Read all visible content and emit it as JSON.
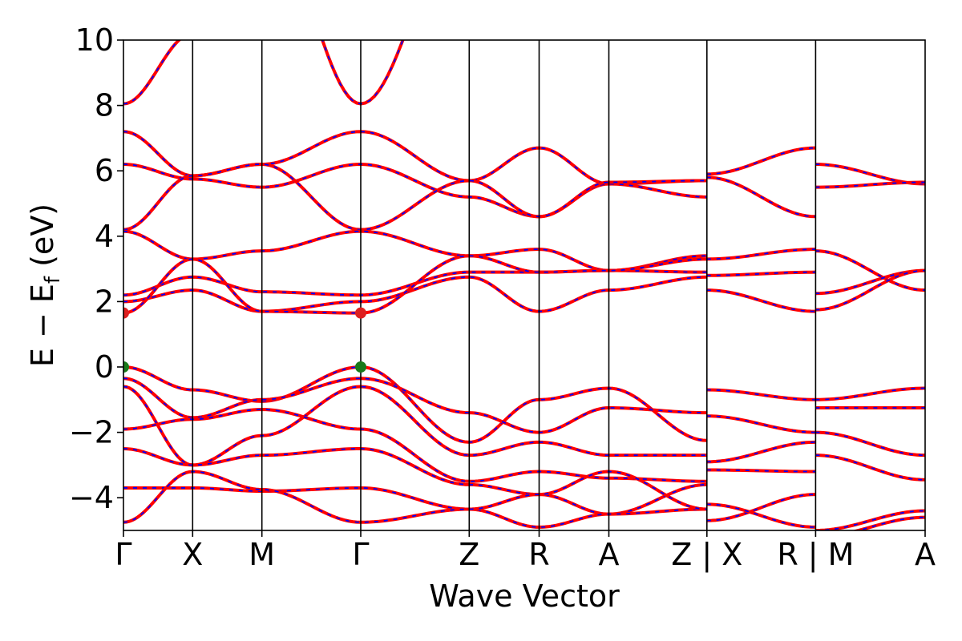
{
  "chart_data": {
    "type": "line",
    "title": "",
    "xlabel": "Wave Vector",
    "ylabel_main": "E − E",
    "ylabel_sub": "f",
    "ylabel_unit": " (eV)",
    "ylim": [
      -5,
      10
    ],
    "yticks": [
      10,
      8,
      6,
      4,
      2,
      0,
      -2,
      -4
    ],
    "ytick_labels": [
      "10",
      "8",
      "6",
      "4",
      "2",
      "0",
      "−2",
      "−4"
    ],
    "k_positions": [
      0,
      0.0863,
      0.1727,
      0.296,
      0.4313,
      0.5185,
      0.6055,
      0.7278,
      0.8634,
      1.0
    ],
    "k_labels": [
      "Γ",
      "X",
      "M",
      "Γ",
      "Z",
      "R",
      "A",
      "Z | X",
      "R | M",
      "A"
    ],
    "discontinuities": [
      0.7278,
      0.8634
    ],
    "series_colors": {
      "bands_main": "#ff0000",
      "bands_overlay": "#0000ff",
      "cbm_marker": "#dd2020",
      "vbm_marker": "#1a7a1a"
    },
    "markers": [
      {
        "kind": "CBM",
        "x": 0.0,
        "y": 1.65
      },
      {
        "kind": "CBM",
        "x": 0.296,
        "y": 1.65
      },
      {
        "kind": "VBM",
        "x": 0.0,
        "y": 0.0
      },
      {
        "kind": "VBM",
        "x": 0.296,
        "y": 0.0
      }
    ],
    "bands": [
      [
        [
          0,
          8.05
        ],
        [
          0.0863,
          10.2
        ],
        [
          0.1727,
          14
        ],
        [
          0.296,
          8.05
        ],
        [
          0.4313,
          14
        ],
        [
          0.5185,
          14
        ],
        [
          0.6055,
          14
        ],
        [
          0.7278,
          14
        ],
        [
          0.8634,
          14
        ],
        [
          1.0,
          14
        ]
      ],
      [
        [
          0,
          7.2
        ],
        [
          0.0863,
          5.85
        ],
        [
          0.1727,
          6.2
        ],
        [
          0.296,
          7.2
        ],
        [
          0.4313,
          5.7
        ],
        [
          0.5185,
          6.7
        ],
        [
          0.6055,
          5.6
        ],
        [
          0.7278,
          5.7
        ]
      ],
      [
        [
          0,
          6.2
        ],
        [
          0.0863,
          5.75
        ],
        [
          0.1727,
          5.5
        ],
        [
          0.296,
          6.2
        ],
        [
          0.4313,
          5.2
        ],
        [
          0.5185,
          4.6
        ],
        [
          0.6055,
          5.6
        ],
        [
          0.7278,
          5.2
        ]
      ],
      [
        [
          0,
          4.2
        ],
        [
          0.0863,
          5.85
        ],
        [
          0.1727,
          6.2
        ],
        [
          0.296,
          4.2
        ],
        [
          0.4313,
          5.7
        ],
        [
          0.5185,
          4.6
        ],
        [
          0.6055,
          5.65
        ],
        [
          0.7278,
          5.7
        ]
      ],
      [
        [
          0,
          4.15
        ],
        [
          0.0863,
          3.3
        ],
        [
          0.1727,
          3.55
        ],
        [
          0.296,
          4.15
        ],
        [
          0.4313,
          3.4
        ],
        [
          0.5185,
          3.6
        ],
        [
          0.6055,
          2.95
        ],
        [
          0.7278,
          3.4
        ]
      ],
      [
        [
          0,
          2.2
        ],
        [
          0.0863,
          2.75
        ],
        [
          0.1727,
          2.3
        ],
        [
          0.296,
          2.2
        ],
        [
          0.4313,
          2.9
        ],
        [
          0.5185,
          2.9
        ],
        [
          0.6055,
          2.95
        ],
        [
          0.7278,
          2.9
        ]
      ],
      [
        [
          0,
          2.0
        ],
        [
          0.0863,
          2.35
        ],
        [
          0.1727,
          1.7
        ],
        [
          0.296,
          2.0
        ],
        [
          0.4313,
          2.75
        ],
        [
          0.5185,
          1.7
        ],
        [
          0.6055,
          2.35
        ],
        [
          0.7278,
          2.75
        ]
      ],
      [
        [
          0,
          1.65
        ],
        [
          0.0863,
          3.3
        ],
        [
          0.1727,
          1.7
        ],
        [
          0.296,
          1.65
        ],
        [
          0.4313,
          3.4
        ],
        [
          0.5185,
          2.9
        ],
        [
          0.6055,
          2.95
        ],
        [
          0.7278,
          3.3
        ]
      ],
      [
        [
          0,
          0.0
        ],
        [
          0.0863,
          -0.7
        ],
        [
          0.1727,
          -1.05
        ],
        [
          0.296,
          0.0
        ],
        [
          0.4313,
          -2.3
        ],
        [
          0.5185,
          -1.0
        ],
        [
          0.6055,
          -0.65
        ],
        [
          0.7278,
          -2.25
        ]
      ],
      [
        [
          0,
          -0.35
        ],
        [
          0.0863,
          -1.55
        ],
        [
          0.1727,
          -1.0
        ],
        [
          0.296,
          -0.35
        ],
        [
          0.4313,
          -1.4
        ],
        [
          0.5185,
          -2.0
        ],
        [
          0.6055,
          -1.25
        ],
        [
          0.7278,
          -1.4
        ]
      ],
      [
        [
          0,
          -0.6
        ],
        [
          0.0863,
          -3.0
        ],
        [
          0.1727,
          -2.1
        ],
        [
          0.296,
          -0.6
        ],
        [
          0.4313,
          -2.7
        ],
        [
          0.5185,
          -2.3
        ],
        [
          0.6055,
          -2.7
        ],
        [
          0.7278,
          -2.7
        ]
      ],
      [
        [
          0,
          -1.9
        ],
        [
          0.0863,
          -1.6
        ],
        [
          0.1727,
          -1.3
        ],
        [
          0.296,
          -1.9
        ],
        [
          0.4313,
          -3.5
        ],
        [
          0.5185,
          -3.2
        ],
        [
          0.6055,
          -3.4
        ],
        [
          0.7278,
          -3.5
        ]
      ],
      [
        [
          0,
          -2.5
        ],
        [
          0.0863,
          -3.0
        ],
        [
          0.1727,
          -2.7
        ],
        [
          0.296,
          -2.5
        ],
        [
          0.4313,
          -3.6
        ],
        [
          0.5185,
          -3.9
        ],
        [
          0.6055,
          -4.5
        ],
        [
          0.7278,
          -3.6
        ]
      ],
      [
        [
          0,
          -3.7
        ],
        [
          0.0863,
          -3.7
        ],
        [
          0.1727,
          -3.8
        ],
        [
          0.296,
          -3.7
        ],
        [
          0.4313,
          -4.35
        ],
        [
          0.5185,
          -4.9
        ],
        [
          0.6055,
          -4.5
        ],
        [
          0.7278,
          -4.35
        ]
      ],
      [
        [
          0,
          -4.75
        ],
        [
          0.0863,
          -3.2
        ],
        [
          0.1727,
          -3.75
        ],
        [
          0.296,
          -4.75
        ],
        [
          0.4313,
          -4.35
        ],
        [
          0.5185,
          -3.9
        ],
        [
          0.6055,
          -3.2
        ],
        [
          0.7278,
          -4.35
        ]
      ],
      [
        [
          0.7278,
          5.9
        ],
        [
          0.8634,
          6.7
        ]
      ],
      [
        [
          0.7278,
          5.8
        ],
        [
          0.8634,
          4.6
        ]
      ],
      [
        [
          0.7278,
          3.3
        ],
        [
          0.8634,
          3.6
        ]
      ],
      [
        [
          0.7278,
          2.8
        ],
        [
          0.8634,
          2.9
        ]
      ],
      [
        [
          0.7278,
          2.35
        ],
        [
          0.8634,
          1.7
        ]
      ],
      [
        [
          0.7278,
          -0.7
        ],
        [
          0.8634,
          -1.0
        ]
      ],
      [
        [
          0.7278,
          -1.5
        ],
        [
          0.8634,
          -2.0
        ]
      ],
      [
        [
          0.7278,
          -2.9
        ],
        [
          0.8634,
          -2.3
        ]
      ],
      [
        [
          0.7278,
          -3.15
        ],
        [
          0.8634,
          -3.2
        ]
      ],
      [
        [
          0.7278,
          -4.7
        ],
        [
          0.8634,
          -3.9
        ]
      ],
      [
        [
          0.7278,
          -4.2
        ],
        [
          0.8634,
          -4.9
        ]
      ],
      [
        [
          0.8634,
          6.2
        ],
        [
          1.0,
          5.6
        ]
      ],
      [
        [
          0.8634,
          5.5
        ],
        [
          1.0,
          5.65
        ]
      ],
      [
        [
          0.8634,
          3.55
        ],
        [
          1.0,
          2.35
        ]
      ],
      [
        [
          0.8634,
          2.25
        ],
        [
          1.0,
          2.95
        ]
      ],
      [
        [
          0.8634,
          1.75
        ],
        [
          1.0,
          2.95
        ]
      ],
      [
        [
          0.8634,
          -1.0
        ],
        [
          1.0,
          -0.65
        ]
      ],
      [
        [
          0.8634,
          -1.25
        ],
        [
          1.0,
          -1.25
        ]
      ],
      [
        [
          0.8634,
          -2.0
        ],
        [
          1.0,
          -2.7
        ]
      ],
      [
        [
          0.8634,
          -2.7
        ],
        [
          1.0,
          -3.45
        ]
      ],
      [
        [
          0.8634,
          -5.0
        ],
        [
          1.0,
          -4.4
        ]
      ],
      [
        [
          0.8634,
          -5.2
        ],
        [
          1.0,
          -4.6
        ]
      ]
    ]
  }
}
